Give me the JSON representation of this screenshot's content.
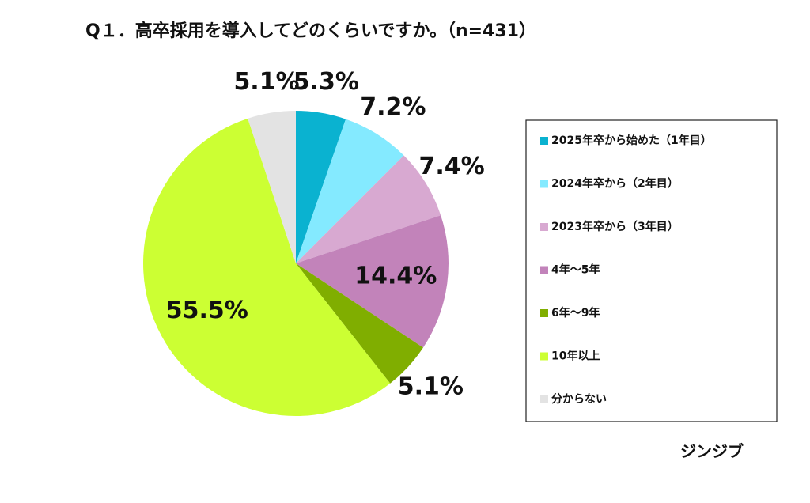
{
  "chart_data": {
    "type": "pie",
    "title": "Q１．高卒採用を導入してどのくらいですか。（n=431）",
    "categories": [
      "2025年卒から始めた（1年目）",
      "2024年卒から（2年目）",
      "2023年卒から（3年目）",
      "4年～5年",
      "6年～9年",
      "10年以上",
      "分からない"
    ],
    "values": [
      5.3,
      7.2,
      7.4,
      14.4,
      5.1,
      55.5,
      5.1
    ],
    "value_labels": [
      "5.3%",
      "7.2%",
      "7.4%",
      "14.4%",
      "5.1%",
      "55.5%",
      "5.1%"
    ],
    "colors": [
      "#0ab2d0",
      "#84eaff",
      "#d8a9d1",
      "#c283ba",
      "#80ae00",
      "#ccff33",
      "#e3e3e3"
    ],
    "legend": "right",
    "source": "ジンジブ"
  }
}
